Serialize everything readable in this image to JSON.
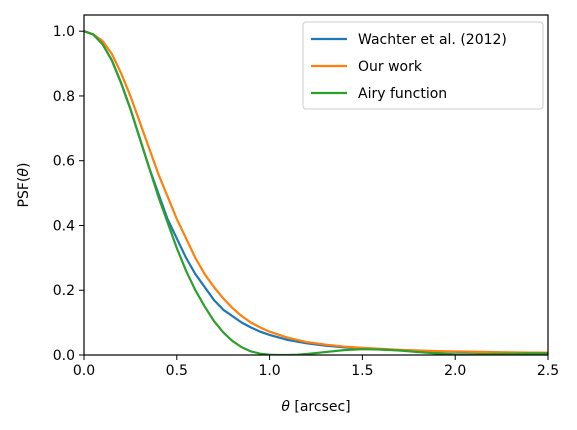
{
  "chart_data": {
    "type": "line",
    "xlabel_symbol": "θ",
    "xlabel_unit": " [arcsec]",
    "ylabel_prefix": "PSF(",
    "ylabel_symbol": "θ",
    "ylabel_suffix": ")",
    "xlim": [
      0.0,
      2.5
    ],
    "ylim": [
      0.0,
      1.05
    ],
    "x_ticks": [
      0.0,
      0.5,
      1.0,
      1.5,
      2.0,
      2.5
    ],
    "x_tick_labels": [
      "0.0",
      "0.5",
      "1.0",
      "1.5",
      "2.0",
      "2.5"
    ],
    "y_ticks": [
      0.0,
      0.2,
      0.4,
      0.6,
      0.8,
      1.0
    ],
    "y_tick_labels": [
      "0.0",
      "0.2",
      "0.4",
      "0.6",
      "0.8",
      "1.0"
    ],
    "grid": false,
    "legend_position": "top-right",
    "series": [
      {
        "name": "Wachter et al. (2012)",
        "color": "#1f77b4",
        "x": [
          0.0,
          0.05,
          0.1,
          0.15,
          0.2,
          0.25,
          0.3,
          0.35,
          0.4,
          0.45,
          0.5,
          0.55,
          0.6,
          0.65,
          0.7,
          0.75,
          0.8,
          0.85,
          0.9,
          0.95,
          1.0,
          1.1,
          1.2,
          1.3,
          1.4,
          1.5,
          1.6,
          1.7,
          1.8,
          1.9,
          2.0,
          2.1,
          2.2,
          2.3,
          2.4,
          2.5
        ],
        "y": [
          1.0,
          0.99,
          0.96,
          0.91,
          0.84,
          0.76,
          0.67,
          0.58,
          0.5,
          0.42,
          0.36,
          0.3,
          0.25,
          0.21,
          0.17,
          0.14,
          0.12,
          0.1,
          0.085,
          0.072,
          0.062,
          0.046,
          0.036,
          0.029,
          0.024,
          0.02,
          0.017,
          0.015,
          0.013,
          0.011,
          0.01,
          0.009,
          0.008,
          0.007,
          0.0065,
          0.006
        ]
      },
      {
        "name": "Our work",
        "color": "#ff7f0e",
        "x": [
          0.0,
          0.05,
          0.1,
          0.15,
          0.2,
          0.25,
          0.3,
          0.35,
          0.4,
          0.45,
          0.5,
          0.55,
          0.6,
          0.65,
          0.7,
          0.75,
          0.8,
          0.85,
          0.9,
          0.95,
          1.0,
          1.1,
          1.2,
          1.3,
          1.4,
          1.5,
          1.6,
          1.7,
          1.8,
          1.9,
          2.0,
          2.1,
          2.2,
          2.3,
          2.4,
          2.5
        ],
        "y": [
          1.0,
          0.99,
          0.97,
          0.93,
          0.87,
          0.8,
          0.72,
          0.64,
          0.56,
          0.49,
          0.42,
          0.36,
          0.3,
          0.25,
          0.21,
          0.175,
          0.145,
          0.12,
          0.1,
          0.085,
          0.072,
          0.053,
          0.04,
          0.032,
          0.026,
          0.022,
          0.019,
          0.016,
          0.014,
          0.012,
          0.011,
          0.01,
          0.009,
          0.008,
          0.0075,
          0.007
        ]
      },
      {
        "name": "Airy function",
        "color": "#2ca02c",
        "x": [
          0.0,
          0.05,
          0.1,
          0.15,
          0.2,
          0.25,
          0.3,
          0.35,
          0.4,
          0.45,
          0.5,
          0.55,
          0.6,
          0.65,
          0.7,
          0.75,
          0.8,
          0.85,
          0.9,
          0.95,
          1.0,
          1.05,
          1.1,
          1.15,
          1.2,
          1.3,
          1.4,
          1.5,
          1.6,
          1.7,
          1.8,
          1.9,
          2.0,
          2.1,
          2.2,
          2.3,
          2.4,
          2.5
        ],
        "y": [
          1.0,
          0.99,
          0.96,
          0.91,
          0.84,
          0.76,
          0.67,
          0.58,
          0.49,
          0.41,
          0.33,
          0.26,
          0.2,
          0.15,
          0.105,
          0.07,
          0.043,
          0.024,
          0.011,
          0.004,
          0.001,
          0.0,
          0.0,
          0.001,
          0.003,
          0.009,
          0.015,
          0.018,
          0.017,
          0.014,
          0.009,
          0.005,
          0.002,
          0.002,
          0.003,
          0.004,
          0.005,
          0.005
        ]
      }
    ]
  }
}
